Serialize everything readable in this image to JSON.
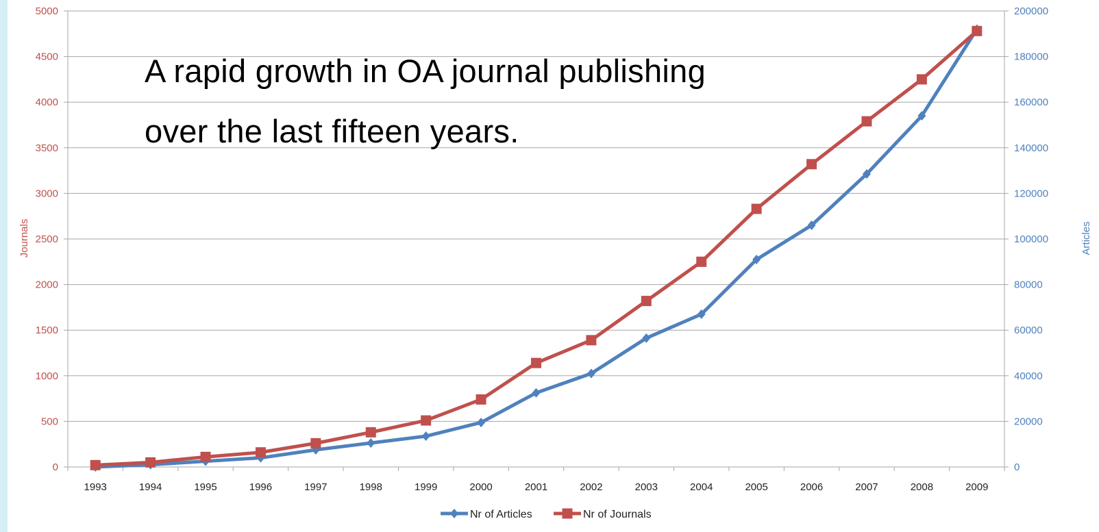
{
  "headline": {
    "line1": "A rapid growth in OA journal publishing",
    "line2": "over the last fifteen years."
  },
  "colors": {
    "journals": "#c0504d",
    "articles": "#4f81bd",
    "grid": "#a6a6a6",
    "background_accent": "#d6eef5"
  },
  "chart_data": {
    "type": "line",
    "x": [
      "1993",
      "1994",
      "1995",
      "1996",
      "1997",
      "1998",
      "1999",
      "2000",
      "2001",
      "2002",
      "2003",
      "2004",
      "2005",
      "2006",
      "2007",
      "2008",
      "2009"
    ],
    "series": [
      {
        "name": "Nr of Articles",
        "axis": "right",
        "marker": "diamond",
        "color": "#4f81bd",
        "values": [
          0,
          1000,
          2500,
          4000,
          7500,
          10500,
          13500,
          19500,
          32500,
          41000,
          56500,
          67000,
          91000,
          106000,
          128500,
          154000,
          192000
        ]
      },
      {
        "name": "Nr of Journals",
        "axis": "left",
        "marker": "square",
        "color": "#c0504d",
        "values": [
          20,
          50,
          110,
          160,
          260,
          380,
          510,
          740,
          1140,
          1390,
          1820,
          2250,
          2830,
          3320,
          3790,
          4250,
          4780
        ]
      }
    ],
    "ylabel_left": "Journals",
    "ylabel_right": "Articles",
    "ylim_left": [
      0,
      5000
    ],
    "ylim_right": [
      0,
      200000
    ],
    "yticks_left": [
      "0",
      "500",
      "1000",
      "1500",
      "2000",
      "2500",
      "3000",
      "3500",
      "4000",
      "4500",
      "5000"
    ],
    "yticks_right": [
      "0",
      "20000",
      "40000",
      "60000",
      "80000",
      "100000",
      "120000",
      "140000",
      "160000",
      "180000",
      "200000"
    ],
    "grid": true,
    "legend_position": "bottom"
  }
}
